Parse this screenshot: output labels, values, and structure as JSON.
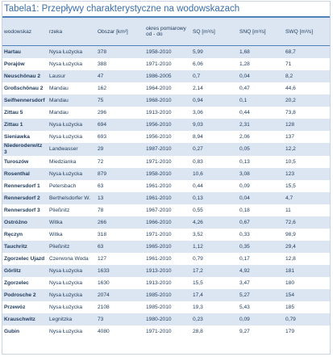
{
  "title": "Tabela1: Przepływy charakterystyczne na wodowskazach",
  "table": {
    "header": [
      "wodowskaz",
      "rzeka",
      "Obszar [km²]",
      "okres pomiarowy od - do",
      "SQ [m³/s]",
      "SNQ [m³/s]",
      "SWQ [m³/s]"
    ],
    "rows": [
      [
        "Hartau",
        "Nysa Łużycka",
        "378",
        "1958-2010",
        "5,99",
        "1,68",
        "68,7"
      ],
      [
        "Porajów",
        "Nysa Łużycka",
        "388",
        "1971-2010",
        "6,06",
        "1,28",
        "71"
      ],
      [
        "Neuschönau 2",
        "Lausur",
        "47",
        "1986-2005",
        "0,7",
        "0,04",
        "8,2"
      ],
      [
        "Großschönau 2",
        "Mandau",
        "162",
        "1964-2010",
        "2,14",
        "0,47",
        "44,6"
      ],
      [
        "Seifhennersdorf",
        "Mandau",
        "75",
        "1968-2010",
        "0,94",
        "0,1",
        "20,2"
      ],
      [
        "Zittau 5",
        "Mandau",
        "296",
        "1913-2010",
        "3,06",
        "0,44",
        "73,8"
      ],
      [
        "Zittau 1",
        "Nysa Łużycka",
        "694",
        "1956-2010",
        "9,03",
        "2,31",
        "128"
      ],
      [
        "Sieniawka",
        "Nysa Łużycka",
        "693",
        "1956-2010",
        "8,94",
        "2,06",
        "137"
      ],
      [
        "Niederoderwitz 3",
        "Landwasser",
        "29",
        "1987-2010",
        "0,27",
        "0,05",
        "12,2"
      ],
      [
        "Turoszów",
        "Miedzianka",
        "72",
        "1971-2010",
        "0,83",
        "0,13",
        "10,5"
      ],
      [
        "Rosenthal",
        "Nysa Łużycka",
        "879",
        "1958-2010",
        "10,6",
        "3,08",
        "123"
      ],
      [
        "Rennersdorf 1",
        "Petersbach",
        "63",
        "1961-2010",
        "0,44",
        "0,09",
        "15,5"
      ],
      [
        "Rennersdorf 2",
        "Berthelsdorfer W.",
        "13",
        "1961-2010",
        "0,13",
        "0,04",
        "4,7"
      ],
      [
        "Rennersdorf 3",
        "Pließnitz",
        "78",
        "1967-2010",
        "0,55",
        "0,18",
        "11"
      ],
      [
        "Ostróżno",
        "Witka",
        "266",
        "1966-2010",
        "4,26",
        "0,67",
        "72,6"
      ],
      [
        "Ręczyn",
        "Witka",
        "318",
        "1971-2010",
        "3,52",
        "0,33",
        "98,9"
      ],
      [
        "Tauchritz",
        "Pließnitz",
        "63",
        "1965-2010",
        "1,12",
        "0,35",
        "29,4"
      ],
      [
        "Zgorzelec Ujazd",
        "Czerwona Woda",
        "127",
        "1961-2010",
        "0,79",
        "0,17",
        "12,8"
      ],
      [
        "Görlitz",
        "Nysa Łużycka",
        "1633",
        "1913-2010",
        "17,2",
        "4,92",
        "181"
      ],
      [
        "Zgorzelec",
        "Nysa Łużycka",
        "1630",
        "1913-2010",
        "15,5",
        "3,47",
        "180"
      ],
      [
        "Podrosche 2",
        "Nysa Łużycka",
        "2074",
        "1985-2010",
        "17,4",
        "5,27",
        "154"
      ],
      [
        "Przewóz",
        "Nysa Łużycka",
        "2108",
        "1985-2010",
        "19,3",
        "5,43",
        "185"
      ],
      [
        "Krauschwitz",
        "Legnitzka",
        "73",
        "1980-2010",
        "0,23",
        "0,09",
        "0,79"
      ],
      [
        "Gubin",
        "Nysa Łużycka",
        "4080",
        "1971-2010",
        "28,8",
        "9,27",
        "179"
      ]
    ]
  }
}
